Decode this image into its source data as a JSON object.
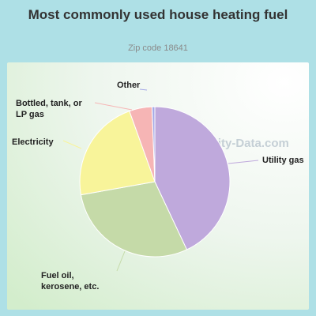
{
  "chart_data": {
    "type": "pie",
    "title": "Most commonly used house heating fuel",
    "subtitle": "Zip code 18641",
    "slices": [
      {
        "label": "Utility gas",
        "value": 43.0,
        "color": "#bfa9dc"
      },
      {
        "label": "Fuel oil, kerosene, etc.",
        "value": 29.2,
        "color": "#c5daa8"
      },
      {
        "label": "Electricity",
        "value": 22.3,
        "color": "#f8f49a"
      },
      {
        "label": "Bottled, tank, or LP gas",
        "value": 4.9,
        "color": "#f6b5b5"
      },
      {
        "label": "Other",
        "value": 0.6,
        "color": "#a4a8e6"
      }
    ],
    "label_lines": [
      {
        "label": "Other",
        "lines": [
          "Other"
        ]
      },
      {
        "label": "Bottled, tank, or LP gas",
        "lines": [
          "Bottled, tank, or",
          "LP gas"
        ]
      },
      {
        "label": "Electricity",
        "lines": [
          "Electricity"
        ]
      },
      {
        "label": "Utility gas",
        "lines": [
          "Utility gas"
        ]
      },
      {
        "label": "Fuel oil, kerosene, etc.",
        "lines": [
          "Fuel oil,",
          "kerosene, etc."
        ]
      }
    ]
  },
  "watermark": "City-Data.com",
  "icon": "magnifier-chart-icon"
}
